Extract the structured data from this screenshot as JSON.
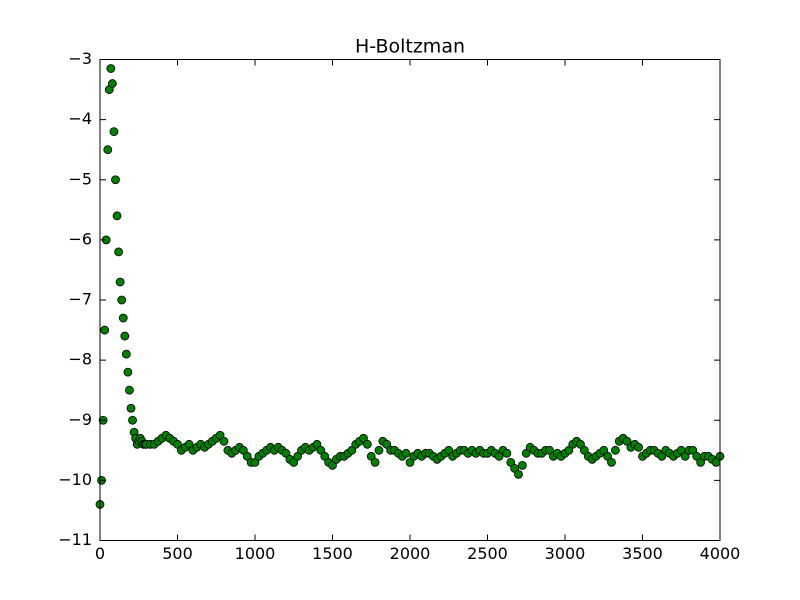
{
  "chart_data": {
    "type": "scatter",
    "title": "H-Boltzman",
    "color": "#008000",
    "edgecolor": "#000000",
    "x": [
      0,
      10,
      20,
      30,
      40,
      50,
      60,
      70,
      80,
      90,
      100,
      110,
      120,
      130,
      140,
      150,
      160,
      170,
      180,
      190,
      200,
      210,
      220,
      230,
      240,
      250,
      260,
      270,
      280,
      290,
      300,
      325,
      350,
      375,
      400,
      425,
      450,
      475,
      500,
      525,
      550,
      575,
      600,
      625,
      650,
      675,
      700,
      725,
      750,
      775,
      800,
      825,
      850,
      875,
      900,
      925,
      950,
      975,
      1000,
      1025,
      1050,
      1075,
      1100,
      1125,
      1150,
      1175,
      1200,
      1225,
      1250,
      1275,
      1300,
      1325,
      1350,
      1375,
      1400,
      1425,
      1450,
      1475,
      1500,
      1525,
      1550,
      1575,
      1600,
      1625,
      1650,
      1675,
      1700,
      1725,
      1750,
      1775,
      1800,
      1825,
      1850,
      1875,
      1900,
      1925,
      1950,
      1975,
      2000,
      2025,
      2050,
      2075,
      2100,
      2125,
      2150,
      2175,
      2200,
      2225,
      2250,
      2275,
      2300,
      2325,
      2350,
      2375,
      2400,
      2425,
      2450,
      2475,
      2500,
      2525,
      2550,
      2575,
      2600,
      2625,
      2650,
      2675,
      2700,
      2725,
      2750,
      2775,
      2800,
      2825,
      2850,
      2875,
      2900,
      2925,
      2950,
      2975,
      3000,
      3025,
      3050,
      3075,
      3100,
      3125,
      3150,
      3175,
      3200,
      3225,
      3250,
      3275,
      3300,
      3325,
      3350,
      3375,
      3400,
      3425,
      3450,
      3475,
      3500,
      3525,
      3550,
      3575,
      3600,
      3625,
      3650,
      3675,
      3700,
      3725,
      3750,
      3775,
      3800,
      3825,
      3850,
      3875,
      3900,
      3925,
      3950,
      3975,
      4000
    ],
    "values": [
      -10.4,
      -10.0,
      -9.0,
      -7.5,
      -6.0,
      -4.5,
      -3.5,
      -3.15,
      -3.4,
      -4.2,
      -5.0,
      -5.6,
      -6.2,
      -6.7,
      -7.0,
      -7.3,
      -7.6,
      -7.9,
      -8.2,
      -8.5,
      -8.8,
      -9.0,
      -9.2,
      -9.3,
      -9.4,
      -9.35,
      -9.3,
      -9.35,
      -9.4,
      -9.4,
      -9.4,
      -9.4,
      -9.4,
      -9.35,
      -9.3,
      -9.25,
      -9.3,
      -9.35,
      -9.4,
      -9.5,
      -9.45,
      -9.4,
      -9.5,
      -9.45,
      -9.4,
      -9.45,
      -9.4,
      -9.35,
      -9.3,
      -9.25,
      -9.35,
      -9.5,
      -9.55,
      -9.5,
      -9.45,
      -9.5,
      -9.6,
      -9.7,
      -9.7,
      -9.6,
      -9.55,
      -9.5,
      -9.45,
      -9.5,
      -9.45,
      -9.5,
      -9.55,
      -9.65,
      -9.7,
      -9.6,
      -9.5,
      -9.45,
      -9.5,
      -9.45,
      -9.4,
      -9.5,
      -9.6,
      -9.7,
      -9.75,
      -9.65,
      -9.6,
      -9.6,
      -9.55,
      -9.5,
      -9.4,
      -9.35,
      -9.3,
      -9.4,
      -9.6,
      -9.7,
      -9.5,
      -9.35,
      -9.4,
      -9.5,
      -9.5,
      -9.55,
      -9.6,
      -9.55,
      -9.7,
      -9.6,
      -9.55,
      -9.6,
      -9.55,
      -9.55,
      -9.6,
      -9.65,
      -9.6,
      -9.55,
      -9.5,
      -9.6,
      -9.55,
      -9.5,
      -9.5,
      -9.55,
      -9.5,
      -9.55,
      -9.5,
      -9.55,
      -9.55,
      -9.5,
      -9.55,
      -9.6,
      -9.5,
      -9.55,
      -9.7,
      -9.8,
      -9.9,
      -9.75,
      -9.55,
      -9.45,
      -9.5,
      -9.55,
      -9.55,
      -9.5,
      -9.5,
      -9.6,
      -9.55,
      -9.6,
      -9.55,
      -9.5,
      -9.4,
      -9.35,
      -9.4,
      -9.5,
      -9.6,
      -9.65,
      -9.6,
      -9.55,
      -9.5,
      -9.6,
      -9.7,
      -9.5,
      -9.35,
      -9.3,
      -9.35,
      -9.45,
      -9.4,
      -9.45,
      -9.6,
      -9.55,
      -9.5,
      -9.5,
      -9.55,
      -9.6,
      -9.5,
      -9.55,
      -9.6,
      -9.55,
      -9.5,
      -9.6,
      -9.5,
      -9.5,
      -9.6,
      -9.7,
      -9.6,
      -9.6,
      -9.65,
      -9.7,
      -9.6
    ],
    "xlim": [
      0,
      4000
    ],
    "xticks": [
      0,
      500,
      1000,
      1500,
      2000,
      2500,
      3000,
      3500,
      4000
    ],
    "ylim": [
      -11,
      -3
    ],
    "yticks": [
      {
        "value": -11,
        "label": "−11"
      },
      {
        "value": -10,
        "label": "−10"
      },
      {
        "value": -9,
        "label": "−9"
      },
      {
        "value": -8,
        "label": "−8"
      },
      {
        "value": -7,
        "label": "−7"
      },
      {
        "value": -6,
        "label": "−6"
      },
      {
        "value": -5,
        "label": "−5"
      },
      {
        "value": -4,
        "label": "−4"
      },
      {
        "value": -3,
        "label": "−3"
      }
    ],
    "grid": false
  }
}
